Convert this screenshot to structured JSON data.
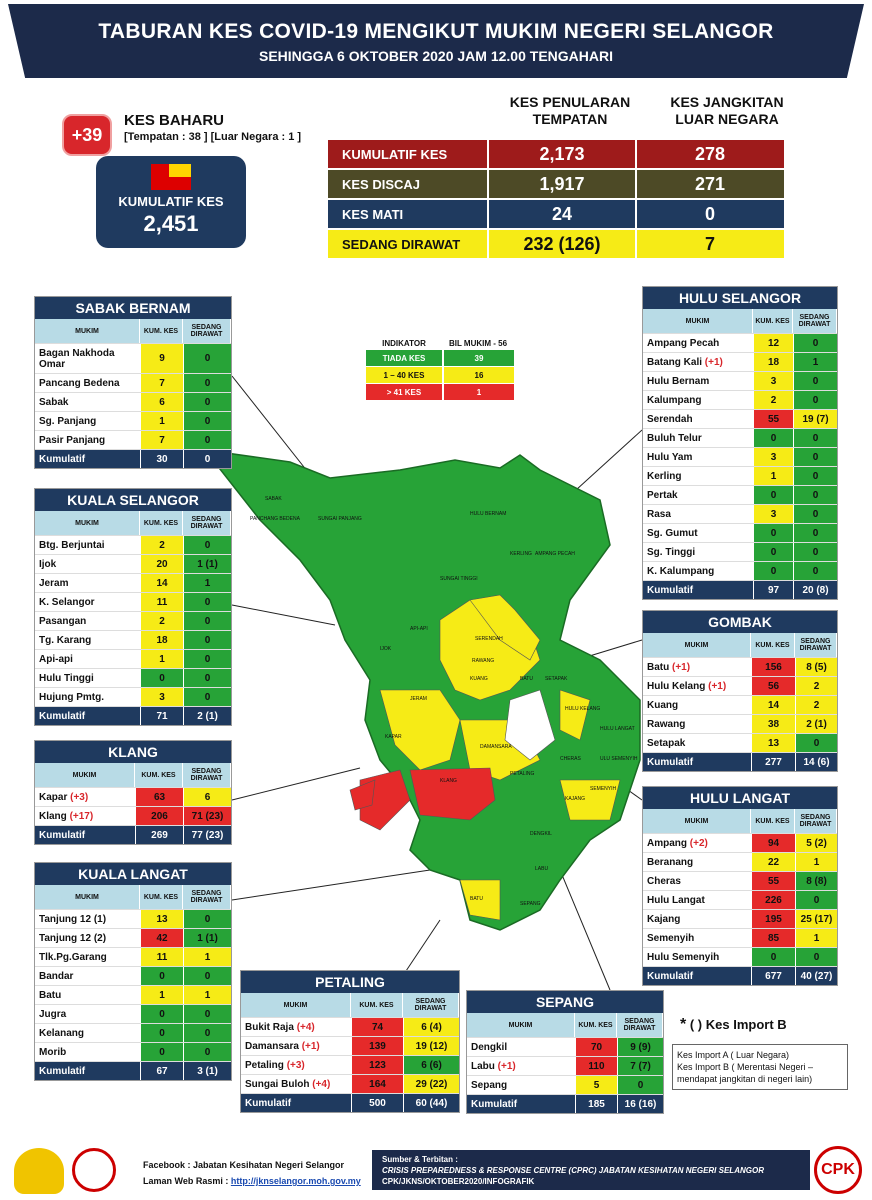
{
  "header": {
    "title": "TABURAN KES COVID-19 MENGIKUT MUKIM NEGERI SELANGOR",
    "subtitle": "SEHINGGA 6 OKTOBER 2020 JAM 12.00 TENGAHARI"
  },
  "new_cases": {
    "badge": "+39",
    "label": "KES BAHARU",
    "detail": "[Tempatan : 38 ] [Luar Negara : 1 ]"
  },
  "cumulative": {
    "label": "KUMULATIF KES",
    "value": "2,451"
  },
  "summary": {
    "col1": "KES PENULARAN TEMPATAN",
    "col2": "KES JANGKITAN LUAR NEGARA",
    "rows": [
      {
        "label": "KUMULATIF KES",
        "local": "2,173",
        "import": "278",
        "color": "#9e1b1b",
        "text": "#ffffff"
      },
      {
        "label": "KES DISCAJ",
        "local": "1,917",
        "import": "271",
        "color": "#4d4a26",
        "text": "#ffffff"
      },
      {
        "label": "KES MATI",
        "local": "24",
        "import": "0",
        "color": "#1f3a5f",
        "text": "#ffffff"
      },
      {
        "label": "SEDANG DIRAWAT",
        "local": "232 (126)",
        "import": "7",
        "color": "#f6eb16",
        "text": "#111111"
      }
    ]
  },
  "indicator": {
    "h1": "INDIKATOR",
    "h2": "BIL MUKIM - 56",
    "rows": [
      {
        "label": "TIADA KES",
        "count": "39",
        "color": "#27a337"
      },
      {
        "label": "1 – 40 KES",
        "count": "16",
        "color": "#f6eb16"
      },
      {
        "label": "> 41 KES",
        "count": "1",
        "color": "#e52a2a"
      }
    ]
  },
  "col_headers": {
    "mukim": "MUKIM",
    "kum": "KUM. KES",
    "dirawat": "SEDANG DIRAWAT"
  },
  "districts": {
    "sabak_bernam": {
      "title": "SABAK BERNAM",
      "rows": [
        {
          "name": "Bagan Nakhoda Omar",
          "plus": "",
          "kes": "9",
          "dirawat": "0",
          "kc": "y",
          "dc": "g"
        },
        {
          "name": "Pancang Bedena",
          "plus": "",
          "kes": "7",
          "dirawat": "0",
          "kc": "y",
          "dc": "g"
        },
        {
          "name": "Sabak",
          "plus": "",
          "kes": "6",
          "dirawat": "0",
          "kc": "y",
          "dc": "g"
        },
        {
          "name": "Sg. Panjang",
          "plus": "",
          "kes": "1",
          "dirawat": "0",
          "kc": "y",
          "dc": "g"
        },
        {
          "name": "Pasir Panjang",
          "plus": "",
          "kes": "7",
          "dirawat": "0",
          "kc": "y",
          "dc": "g"
        }
      ],
      "cum": {
        "label": "Kumulatif",
        "kes": "30",
        "dirawat": "0"
      }
    },
    "kuala_selangor": {
      "title": "KUALA SELANGOR",
      "rows": [
        {
          "name": "Btg. Berjuntai",
          "plus": "",
          "kes": "2",
          "dirawat": "0",
          "kc": "y",
          "dc": "g"
        },
        {
          "name": "Ijok",
          "plus": "",
          "kes": "20",
          "dirawat": "1 (1)",
          "kc": "y",
          "dc": "g"
        },
        {
          "name": "Jeram",
          "plus": "",
          "kes": "14",
          "dirawat": "1",
          "kc": "y",
          "dc": "g"
        },
        {
          "name": "K. Selangor",
          "plus": "",
          "kes": "11",
          "dirawat": "0",
          "kc": "y",
          "dc": "g"
        },
        {
          "name": "Pasangan",
          "plus": "",
          "kes": "2",
          "dirawat": "0",
          "kc": "y",
          "dc": "g"
        },
        {
          "name": "Tg. Karang",
          "plus": "",
          "kes": "18",
          "dirawat": "0",
          "kc": "y",
          "dc": "g"
        },
        {
          "name": "Api-api",
          "plus": "",
          "kes": "1",
          "dirawat": "0",
          "kc": "y",
          "dc": "g"
        },
        {
          "name": "Hulu Tinggi",
          "plus": "",
          "kes": "0",
          "dirawat": "0",
          "kc": "g",
          "dc": "g"
        },
        {
          "name": "Hujung Pmtg.",
          "plus": "",
          "kes": "3",
          "dirawat": "0",
          "kc": "y",
          "dc": "g"
        }
      ],
      "cum": {
        "label": "Kumulatif",
        "kes": "71",
        "dirawat": "2 (1)"
      }
    },
    "klang": {
      "title": "KLANG",
      "rows": [
        {
          "name": "Kapar",
          "plus": "(+3)",
          "kes": "63",
          "dirawat": "6",
          "kc": "r",
          "dc": "y"
        },
        {
          "name": "Klang",
          "plus": "(+17)",
          "kes": "206",
          "dirawat": "71 (23)",
          "kc": "r",
          "dc": "r"
        }
      ],
      "cum": {
        "label": "Kumulatif",
        "kes": "269",
        "dirawat": "77 (23)"
      }
    },
    "kuala_langat": {
      "title": "KUALA LANGAT",
      "rows": [
        {
          "name": "Tanjung 12 (1)",
          "plus": "",
          "kes": "13",
          "dirawat": "0",
          "kc": "y",
          "dc": "g"
        },
        {
          "name": "Tanjung 12 (2)",
          "plus": "",
          "kes": "42",
          "dirawat": "1 (1)",
          "kc": "r",
          "dc": "g"
        },
        {
          "name": "Tlk.Pg.Garang",
          "plus": "",
          "kes": "11",
          "dirawat": "1",
          "kc": "y",
          "dc": "y"
        },
        {
          "name": "Bandar",
          "plus": "",
          "kes": "0",
          "dirawat": "0",
          "kc": "g",
          "dc": "g"
        },
        {
          "name": "Batu",
          "plus": "",
          "kes": "1",
          "dirawat": "1",
          "kc": "y",
          "dc": "y"
        },
        {
          "name": "Jugra",
          "plus": "",
          "kes": "0",
          "dirawat": "0",
          "kc": "g",
          "dc": "g"
        },
        {
          "name": "Kelanang",
          "plus": "",
          "kes": "0",
          "dirawat": "0",
          "kc": "g",
          "dc": "g"
        },
        {
          "name": "Morib",
          "plus": "",
          "kes": "0",
          "dirawat": "0",
          "kc": "g",
          "dc": "g"
        }
      ],
      "cum": {
        "label": "Kumulatif",
        "kes": "67",
        "dirawat": "3 (1)"
      }
    },
    "petaling": {
      "title": "PETALING",
      "rows": [
        {
          "name": "Bukit Raja",
          "plus": "(+4)",
          "kes": "74",
          "dirawat": "6 (4)",
          "kc": "r",
          "dc": "y"
        },
        {
          "name": "Damansara",
          "plus": "(+1)",
          "kes": "139",
          "dirawat": "19 (12)",
          "kc": "r",
          "dc": "y"
        },
        {
          "name": "Petaling",
          "plus": "(+3)",
          "kes": "123",
          "dirawat": "6 (6)",
          "kc": "r",
          "dc": "g"
        },
        {
          "name": "Sungai Buloh",
          "plus": "(+4)",
          "kes": "164",
          "dirawat": "29 (22)",
          "kc": "r",
          "dc": "y"
        }
      ],
      "cum": {
        "label": "Kumulatif",
        "kes": "500",
        "dirawat": "60 (44)"
      }
    },
    "sepang": {
      "title": "SEPANG",
      "rows": [
        {
          "name": "Dengkil",
          "plus": "",
          "kes": "70",
          "dirawat": "9 (9)",
          "kc": "r",
          "dc": "g"
        },
        {
          "name": "Labu",
          "plus": "(+1)",
          "kes": "110",
          "dirawat": "7 (7)",
          "kc": "r",
          "dc": "g"
        },
        {
          "name": "Sepang",
          "plus": "",
          "kes": "5",
          "dirawat": "0",
          "kc": "y",
          "dc": "g"
        }
      ],
      "cum": {
        "label": "Kumulatif",
        "kes": "185",
        "dirawat": "16 (16)"
      }
    },
    "hulu_selangor": {
      "title": "HULU SELANGOR",
      "rows": [
        {
          "name": "Ampang Pecah",
          "plus": "",
          "kes": "12",
          "dirawat": "0",
          "kc": "y",
          "dc": "g"
        },
        {
          "name": "Batang Kali",
          "plus": "(+1)",
          "kes": "18",
          "dirawat": "1",
          "kc": "y",
          "dc": "g"
        },
        {
          "name": "Hulu Bernam",
          "plus": "",
          "kes": "3",
          "dirawat": "0",
          "kc": "y",
          "dc": "g"
        },
        {
          "name": "Kalumpang",
          "plus": "",
          "kes": "2",
          "dirawat": "0",
          "kc": "y",
          "dc": "g"
        },
        {
          "name": "Serendah",
          "plus": "",
          "kes": "55",
          "dirawat": "19 (7)",
          "kc": "r",
          "dc": "y"
        },
        {
          "name": "Buluh Telur",
          "plus": "",
          "kes": "0",
          "dirawat": "0",
          "kc": "g",
          "dc": "g"
        },
        {
          "name": "Hulu Yam",
          "plus": "",
          "kes": "3",
          "dirawat": "0",
          "kc": "y",
          "dc": "g"
        },
        {
          "name": "Kerling",
          "plus": "",
          "kes": "1",
          "dirawat": "0",
          "kc": "y",
          "dc": "g"
        },
        {
          "name": "Pertak",
          "plus": "",
          "kes": "0",
          "dirawat": "0",
          "kc": "g",
          "dc": "g"
        },
        {
          "name": "Rasa",
          "plus": "",
          "kes": "3",
          "dirawat": "0",
          "kc": "y",
          "dc": "g"
        },
        {
          "name": "Sg. Gumut",
          "plus": "",
          "kes": "0",
          "dirawat": "0",
          "kc": "g",
          "dc": "g"
        },
        {
          "name": "Sg. Tinggi",
          "plus": "",
          "kes": "0",
          "dirawat": "0",
          "kc": "g",
          "dc": "g"
        },
        {
          "name": "K. Kalumpang",
          "plus": "",
          "kes": "0",
          "dirawat": "0",
          "kc": "g",
          "dc": "g"
        }
      ],
      "cum": {
        "label": "Kumulatif",
        "kes": "97",
        "dirawat": "20 (8)"
      }
    },
    "gombak": {
      "title": "GOMBAK",
      "rows": [
        {
          "name": "Batu",
          "plus": "(+1)",
          "kes": "156",
          "dirawat": "8 (5)",
          "kc": "r",
          "dc": "y"
        },
        {
          "name": "Hulu Kelang",
          "plus": "(+1)",
          "kes": "56",
          "dirawat": "2",
          "kc": "r",
          "dc": "y"
        },
        {
          "name": "Kuang",
          "plus": "",
          "kes": "14",
          "dirawat": "2",
          "kc": "y",
          "dc": "y"
        },
        {
          "name": "Rawang",
          "plus": "",
          "kes": "38",
          "dirawat": "2 (1)",
          "kc": "y",
          "dc": "y"
        },
        {
          "name": "Setapak",
          "plus": "",
          "kes": "13",
          "dirawat": "0",
          "kc": "y",
          "dc": "g"
        }
      ],
      "cum": {
        "label": "Kumulatif",
        "kes": "277",
        "dirawat": "14 (6)"
      }
    },
    "hulu_langat": {
      "title": "HULU LANGAT",
      "rows": [
        {
          "name": "Ampang",
          "plus": "(+2)",
          "kes": "94",
          "dirawat": "5 (2)",
          "kc": "r",
          "dc": "y"
        },
        {
          "name": "Beranang",
          "plus": "",
          "kes": "22",
          "dirawat": "1",
          "kc": "y",
          "dc": "y"
        },
        {
          "name": "Cheras",
          "plus": "",
          "kes": "55",
          "dirawat": "8 (8)",
          "kc": "r",
          "dc": "g"
        },
        {
          "name": "Hulu Langat",
          "plus": "",
          "kes": "226",
          "dirawat": "0",
          "kc": "r",
          "dc": "g"
        },
        {
          "name": "Kajang",
          "plus": "",
          "kes": "195",
          "dirawat": "25 (17)",
          "kc": "r",
          "dc": "y"
        },
        {
          "name": "Semenyih",
          "plus": "",
          "kes": "85",
          "dirawat": "1",
          "kc": "r",
          "dc": "y"
        },
        {
          "name": "Hulu Semenyih",
          "plus": "",
          "kes": "0",
          "dirawat": "0",
          "kc": "g",
          "dc": "g"
        }
      ],
      "cum": {
        "label": "Kumulatif",
        "kes": "677",
        "dirawat": "40 (27)"
      }
    }
  },
  "map_labels": [
    "SUNGAI PANJANG",
    "SABAK",
    "PANCHANG BEDENA",
    "SUNGAI TINGGI",
    "HULU BERNAM",
    "KERLING",
    "AMPANG PECAH",
    "SERENDAH",
    "RAWANG",
    "KUANG",
    "BATU",
    "SETAPAK",
    "HULU KELANG",
    "KAPAR",
    "KLANG",
    "DAMANSARA",
    "PETALING",
    "CHERAS",
    "KAJANG",
    "SEMENYIH",
    "JERAM",
    "IJOK",
    "API-API",
    "BATU",
    "DENGKIL",
    "LABU",
    "SEPANG",
    "HULU LANGAT",
    "ULU SEMENYIH"
  ],
  "legend_note": {
    "title": "( ) Kes Import B",
    "star": "*",
    "line1": "Kes Import A ( Luar Negara)",
    "line2": "Kes Import B ( Merentasi Negeri – mendapat jangkitan di negeri lain)"
  },
  "footer": {
    "facebook": "Facebook : Jabatan Kesihatan Negeri Selangor",
    "web_label": "Laman Web Rasmi : ",
    "web_link": "http://jknselangor.moh.gov.my",
    "src1": "Sumber & Terbitan :",
    "src2": "CRISIS PREPAREDNESS & RESPONSE CENTRE (CPRC) JABATAN KESIHATAN NEGERI SELANGOR",
    "src3": "CPK/JKNS/OKTOBER2020/INFOGRAFIK",
    "logo_text": "CPK"
  }
}
